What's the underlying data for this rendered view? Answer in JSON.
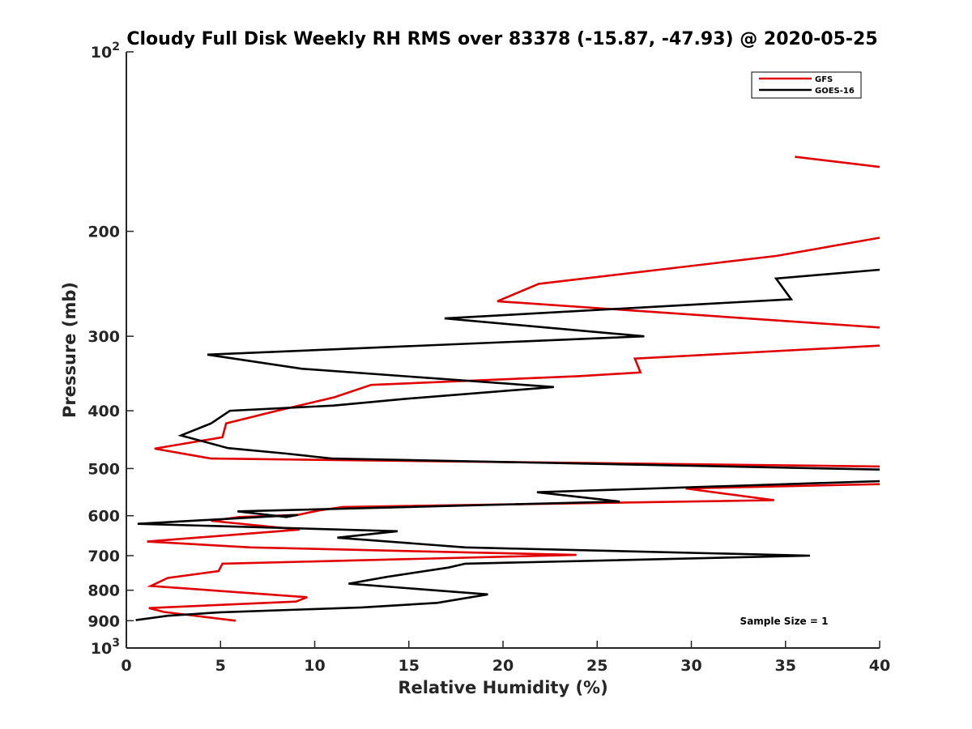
{
  "chart_data": {
    "type": "line",
    "title": "Cloudy Full Disk Weekly RH RMS over 83378 (-15.87, -47.93) @ 2020-05-25",
    "xlabel": "Relative Humidity (%)",
    "ylabel": "Pressure (mb)",
    "xlim": [
      0,
      40
    ],
    "ylim": [
      100,
      1000
    ],
    "yscale": "log",
    "y_reversed": true,
    "x_ticks": [
      "0",
      "5",
      "10",
      "15",
      "20",
      "25",
      "30",
      "35",
      "40"
    ],
    "y_ticks": [
      {
        "value": 100,
        "base": "10",
        "exp": "2"
      },
      {
        "value": 200,
        "label": "200"
      },
      {
        "value": 300,
        "label": "300"
      },
      {
        "value": 400,
        "label": "400"
      },
      {
        "value": 500,
        "label": "500"
      },
      {
        "value": 600,
        "label": "600"
      },
      {
        "value": 700,
        "label": "700"
      },
      {
        "value": 800,
        "label": "800"
      },
      {
        "value": 900,
        "label": "900"
      },
      {
        "value": 1000,
        "base": "10",
        "exp": "3"
      }
    ],
    "legend_position": "top-right",
    "annotation": "Sample Size = 1",
    "series": [
      {
        "name": "GFS",
        "color": "#e00000",
        "segments": [
          [
            [
              35.5,
              150
            ],
            [
              41,
              156
            ]
          ],
          [
            [
              41,
              205
            ],
            [
              34.5,
              220
            ],
            [
              21.9,
              245
            ],
            [
              19.7,
              262
            ],
            [
              41,
              290
            ]
          ],
          [
            [
              41,
              311
            ],
            [
              27,
              327
            ],
            [
              27.3,
              345
            ],
            [
              24,
              350
            ],
            [
              13,
              362
            ],
            [
              11,
              380
            ],
            [
              8,
              400
            ],
            [
              5.3,
              420
            ],
            [
              5.1,
              443
            ],
            [
              1.5,
              463
            ],
            [
              4.5,
              481
            ],
            [
              41,
              496
            ]
          ],
          [
            [
              41,
              531
            ],
            [
              29.7,
              540
            ],
            [
              34.4,
              565
            ],
            [
              11.5,
              580
            ],
            [
              10.2,
              588
            ],
            [
              9.1,
              598
            ],
            [
              6,
              603
            ],
            [
              4.5,
              612
            ],
            [
              9.2,
              633
            ],
            [
              1.1,
              663
            ],
            [
              6.6,
              678
            ],
            [
              23.9,
              698
            ],
            [
              5.1,
              722
            ],
            [
              4.9,
              743
            ],
            [
              2.2,
              763
            ],
            [
              1.3,
              787
            ],
            [
              9.6,
              822
            ],
            [
              9,
              836
            ],
            [
              1.2,
              857
            ],
            [
              2,
              870
            ],
            [
              5.8,
              900
            ]
          ]
        ]
      },
      {
        "name": "GOES-16",
        "color": "#000000",
        "segments": [
          [
            [
              41,
              232
            ],
            [
              34.5,
              240
            ],
            [
              35.3,
              260
            ],
            [
              16.9,
              280
            ],
            [
              27.5,
              300
            ],
            [
              4.3,
              322
            ],
            [
              9.3,
              340
            ],
            [
              22.7,
              365
            ],
            [
              14.8,
              382
            ],
            [
              11,
              392
            ],
            [
              5.5,
              400
            ],
            [
              4.5,
              420
            ],
            [
              2.9,
              440
            ],
            [
              5.4,
              462
            ],
            [
              8.5,
              472
            ],
            [
              10.9,
              481
            ],
            [
              41,
              502
            ]
          ],
          [
            [
              41,
              525
            ],
            [
              21.8,
              548
            ],
            [
              26.2,
              568
            ],
            [
              5.9,
              590
            ],
            [
              8.5,
              603
            ],
            [
              9.1,
              598
            ],
            [
              0.6,
              619
            ],
            [
              14.4,
              637
            ],
            [
              11.2,
              653
            ],
            [
              18,
              678
            ],
            [
              36.3,
              700
            ],
            [
              18,
              722
            ],
            [
              17.1,
              733
            ],
            [
              13.8,
              760
            ],
            [
              11.8,
              780
            ],
            [
              19.2,
              813
            ],
            [
              16.5,
              840
            ],
            [
              12.5,
              855
            ],
            [
              5,
              871
            ],
            [
              2.2,
              883
            ],
            [
              0.5,
              898
            ]
          ]
        ]
      }
    ]
  }
}
